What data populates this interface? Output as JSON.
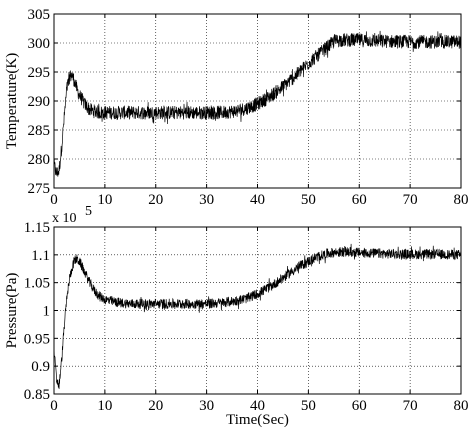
{
  "chart_data": [
    {
      "type": "line",
      "title": "",
      "xlabel": "",
      "ylabel": "Temperature(K)",
      "xlim": [
        0,
        80
      ],
      "ylim": [
        275,
        305
      ],
      "xticks": [
        0,
        10,
        20,
        30,
        40,
        50,
        60,
        70,
        80
      ],
      "yticks": [
        275,
        280,
        285,
        290,
        295,
        300,
        305
      ],
      "xtick_labels": [
        "0",
        "10",
        "20",
        "30",
        "40",
        "50",
        "60",
        "70",
        "80"
      ],
      "ytick_labels": [
        "275",
        "280",
        "285",
        "290",
        "295",
        "300",
        "305"
      ],
      "grid": true,
      "line_color": "#000000",
      "noise_amplitude": 1.2,
      "series": [
        {
          "x": [
            0,
            0.5,
            1,
            1.5,
            2,
            2.5,
            3,
            3.5,
            4,
            4.5,
            5,
            6,
            7,
            8,
            9,
            10,
            12,
            15,
            20,
            25,
            30,
            33,
            36,
            38,
            40,
            42,
            44,
            46,
            48,
            50,
            52,
            54,
            55,
            56,
            58,
            60,
            65,
            70,
            75,
            80
          ],
          "y": [
            279,
            277.5,
            278,
            282,
            287,
            292,
            294,
            294.5,
            293.5,
            292,
            291,
            289.5,
            288.5,
            288.2,
            288,
            288,
            288,
            288,
            288,
            288,
            288,
            288,
            288.3,
            288.8,
            289.5,
            290.5,
            291.8,
            293.2,
            294.8,
            296.5,
            298,
            299.5,
            300.2,
            300.5,
            300.5,
            300.5,
            300.3,
            300.2,
            300.2,
            300.2
          ]
        }
      ]
    },
    {
      "type": "line",
      "title": "",
      "xlabel": "Time(Sec)",
      "ylabel": "Pressure(Pa)",
      "y_multiplier": "x 10",
      "y_exponent": "5",
      "xlim": [
        0,
        80
      ],
      "ylim": [
        0.85,
        1.15
      ],
      "xticks": [
        0,
        10,
        20,
        30,
        40,
        50,
        60,
        70,
        80
      ],
      "yticks": [
        0.85,
        0.9,
        0.95,
        1.0,
        1.05,
        1.1,
        1.15
      ],
      "xtick_labels": [
        "0",
        "10",
        "20",
        "30",
        "40",
        "50",
        "60",
        "70",
        "80"
      ],
      "ytick_labels": [
        "0.85",
        "0.9",
        "0.95",
        "1",
        "1.05",
        "1.1",
        "1.15"
      ],
      "grid": true,
      "line_color": "#000000",
      "noise_amplitude": 0.009,
      "series": [
        {
          "x": [
            0,
            0.5,
            1,
            1.5,
            2,
            2.5,
            3,
            3.5,
            4,
            4.5,
            5,
            6,
            7,
            8,
            9,
            10,
            12,
            15,
            20,
            25,
            30,
            33,
            36,
            38,
            40,
            42,
            44,
            46,
            48,
            50,
            52,
            54,
            56,
            58,
            60,
            65,
            70,
            75,
            80
          ],
          "y": [
            0.93,
            0.875,
            0.865,
            0.91,
            0.97,
            1.02,
            1.055,
            1.075,
            1.09,
            1.092,
            1.088,
            1.07,
            1.05,
            1.035,
            1.025,
            1.02,
            1.015,
            1.012,
            1.012,
            1.012,
            1.012,
            1.014,
            1.018,
            1.022,
            1.03,
            1.04,
            1.052,
            1.065,
            1.078,
            1.088,
            1.097,
            1.103,
            1.105,
            1.105,
            1.104,
            1.102,
            1.101,
            1.101,
            1.1
          ]
        }
      ]
    }
  ]
}
